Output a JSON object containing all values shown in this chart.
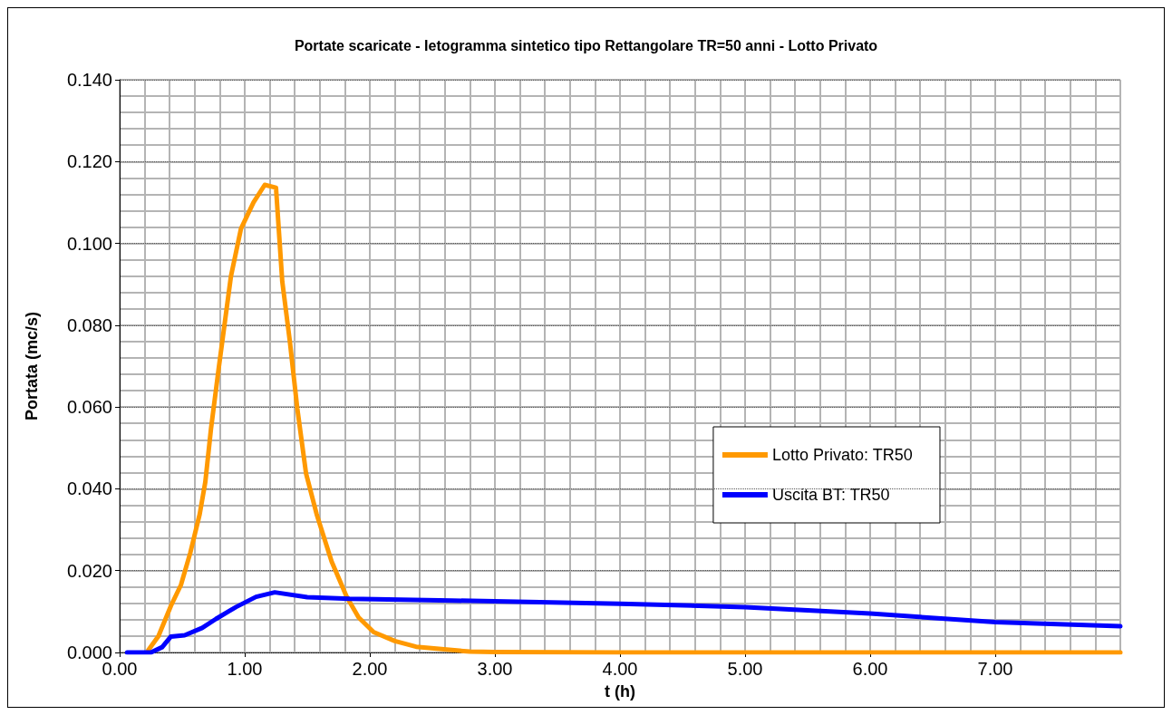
{
  "chart_data": {
    "type": "line",
    "title": "Portate scaricate - Ietogramma sintetico tipo Rettangolare TR=50 anni - Lotto Privato",
    "xlabel": "t (h)",
    "ylabel": "Portata (mc/s)",
    "xlim": [
      0,
      8
    ],
    "xticks": [
      {
        "value": 0,
        "label": "0.00"
      },
      {
        "value": 1,
        "label": "1.00"
      },
      {
        "value": 2,
        "label": "2.00"
      },
      {
        "value": 3,
        "label": "3.00"
      },
      {
        "value": 4,
        "label": "4.00"
      },
      {
        "value": 5,
        "label": "5.00"
      },
      {
        "value": 6,
        "label": "6.00"
      },
      {
        "value": 7,
        "label": "7.00"
      }
    ],
    "ylim": [
      0,
      0.14
    ],
    "yticks": [
      {
        "value": 0,
        "label": "0.000"
      },
      {
        "value": 0.02,
        "label": "0.020"
      },
      {
        "value": 0.04,
        "label": "0.040"
      },
      {
        "value": 0.06,
        "label": "0.060"
      },
      {
        "value": 0.08,
        "label": "0.080"
      },
      {
        "value": 0.1,
        "label": "0.100"
      },
      {
        "value": 0.12,
        "label": "0.120"
      },
      {
        "value": 0.14,
        "label": "0.140"
      }
    ],
    "grid": true,
    "legend": "right",
    "line_style": "solid",
    "series": [
      {
        "name": "Lotto Privato: TR50",
        "color": "#ff9900",
        "x": [
          0.23,
          0.31,
          0.41,
          0.49,
          0.565,
          0.64,
          0.685,
          0.73,
          0.79,
          0.89,
          0.97,
          1.07,
          1.16,
          1.25,
          1.3,
          1.36,
          1.42,
          1.49,
          1.575,
          1.695,
          1.815,
          1.91,
          2.03,
          2.2,
          2.37,
          2.8,
          3.0,
          4.0,
          8.0
        ],
        "values": [
          0.0006,
          0.004,
          0.0114,
          0.0165,
          0.0244,
          0.0338,
          0.0417,
          0.0546,
          0.069,
          0.092,
          0.1036,
          0.11,
          0.1143,
          0.1136,
          0.0907,
          0.0762,
          0.0597,
          0.0438,
          0.0338,
          0.0222,
          0.0136,
          0.0086,
          0.005,
          0.0028,
          0.0014,
          0.0002,
          0.0001,
          0,
          0
        ]
      },
      {
        "name": "Uscita BT: TR50",
        "color": "#0000ff",
        "x": [
          0.06,
          0.25,
          0.34,
          0.41,
          0.52,
          0.66,
          0.77,
          0.93,
          1.09,
          1.24,
          1.5,
          1.84,
          2.66,
          4.0,
          5.0,
          6.0,
          7.0,
          8.0
        ],
        "values": [
          0,
          0,
          0.0013,
          0.0039,
          0.0042,
          0.006,
          0.0082,
          0.0111,
          0.0136,
          0.0147,
          0.0135,
          0.0131,
          0.0127,
          0.0119,
          0.0111,
          0.0095,
          0.0074,
          0.0064
        ]
      }
    ]
  }
}
